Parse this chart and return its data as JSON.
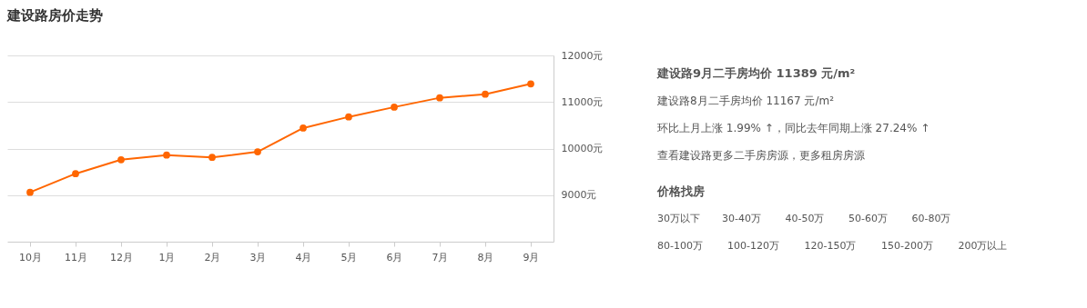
{
  "chart_data": [
    {
      "type": "line",
      "title": "建设路房价走势",
      "categories": [
        "10月",
        "11月",
        "12月",
        "1月",
        "2月",
        "3月",
        "4月",
        "5月",
        "6月",
        "7月",
        "8月",
        "9月"
      ],
      "series": [
        {
          "color": "#ff6600",
          "values": [
            9060,
            9460,
            9760,
            9860,
            9810,
            9930,
            10440,
            10680,
            10890,
            11090,
            11167,
            11389
          ]
        }
      ],
      "ylim": [
        8000,
        12000
      ],
      "yticks": [
        {
          "value": 9000,
          "label": "9000元"
        },
        {
          "value": 10000,
          "label": "10000元"
        },
        {
          "value": 11000,
          "label": "11000元"
        },
        {
          "value": 12000,
          "label": "12000元"
        }
      ],
      "grid": "y",
      "marker": "circle",
      "line_style": "solid"
    },
    {
      "type": "other",
      "title": "建设路9月二手房均价 11389 元/m²",
      "annotations": [
        "建设路8月二手房均价 11167 元/m²",
        "环比上月上涨 1.99% ↑，同比去年同期上涨 27.24% ↑",
        "查看建设路更多二手房房源，更多租房房源",
        "价格找房",
        "30万以下",
        "30-40万",
        "40-50万",
        "50-60万",
        "60-80万",
        "80-100万",
        "100-120万",
        "120-150万",
        "150-200万",
        "200万以上"
      ]
    }
  ]
}
